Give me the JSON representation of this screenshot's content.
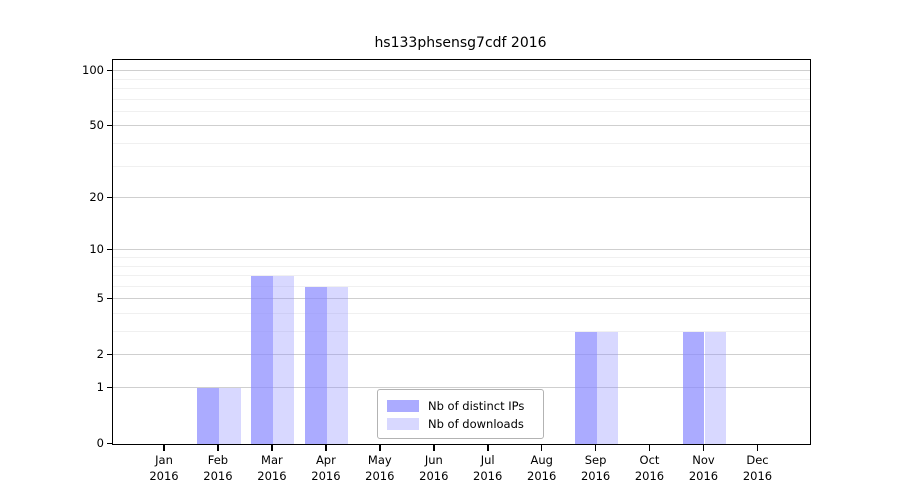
{
  "chart_data": {
    "type": "bar",
    "title": "hs133phsensg7cdf 2016",
    "categories": [
      "Jan",
      "Feb",
      "Mar",
      "Apr",
      "May",
      "Jun",
      "Jul",
      "Aug",
      "Sep",
      "Oct",
      "Nov",
      "Dec"
    ],
    "year": "2016",
    "series": [
      {
        "name": "Nb of distinct IPs",
        "color": "#8888ff",
        "opacity": 0.71,
        "values": [
          0,
          1,
          7,
          6,
          0,
          0,
          0,
          0,
          3,
          0,
          3,
          0
        ]
      },
      {
        "name": "Nb of downloads",
        "color": "#8888ff",
        "opacity": 0.33,
        "values": [
          0,
          1,
          7,
          6,
          0,
          0,
          0,
          0,
          3,
          0,
          3,
          0
        ]
      }
    ],
    "y_axis": {
      "scale": "log1p",
      "tick_values": [
        0,
        1,
        2,
        5,
        10,
        20,
        50,
        100
      ],
      "minor_tick_values": [
        3,
        4,
        6,
        7,
        8,
        9,
        30,
        40,
        60,
        70,
        80,
        90
      ],
      "max": 115
    },
    "grid": "horizontal",
    "legend_position": "lower center-right"
  },
  "style": {
    "major_grid_color": "#cfcfcf",
    "minor_grid_color": "#f0f0f0",
    "spine_color": "#000000",
    "background": "#ffffff"
  }
}
